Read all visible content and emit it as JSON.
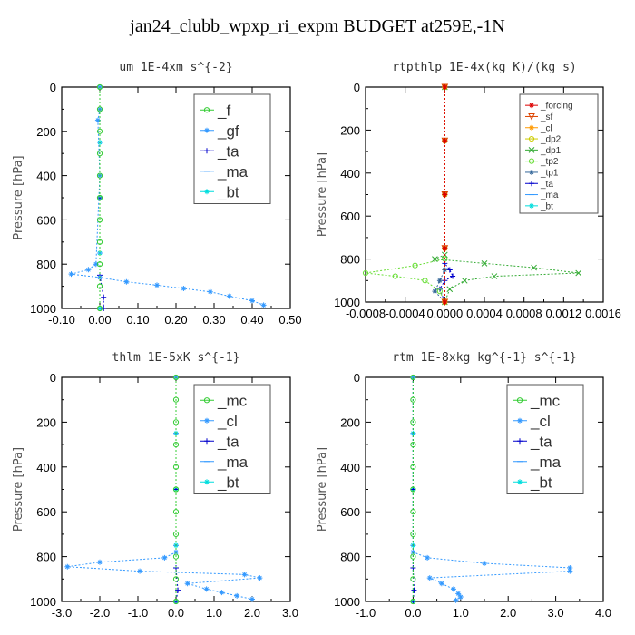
{
  "title": "jan24_clubb_wpxp_ri_expm  BUDGET at259E,-1N",
  "chart_data": [
    {
      "type": "line",
      "title": "um  1E-4xm s^{-2}",
      "ylabel": "Pressure [hPa]",
      "xlim": [
        -0.1,
        0.5
      ],
      "ylim": [
        1000,
        0
      ],
      "xticks": [
        "-0.10",
        "0.00",
        "0.10",
        "0.20",
        "0.30",
        "0.40",
        "0.50"
      ],
      "xtick_values": [
        -0.1,
        0.0,
        0.1,
        0.2,
        0.3,
        0.4,
        0.5
      ],
      "yticks": [
        "0",
        "200",
        "400",
        "600",
        "800",
        "1000"
      ],
      "ytick_values": [
        0,
        200,
        400,
        600,
        800,
        1000
      ],
      "legend_position": "top-right",
      "legend_size": "large",
      "series": [
        {
          "name": "_f",
          "color": "#33cc33",
          "marker": "o",
          "x": [
            0,
            0,
            0,
            0,
            0,
            0,
            0,
            0,
            0,
            0,
            0
          ],
          "y": [
            0,
            100,
            200,
            300,
            400,
            500,
            600,
            700,
            800,
            900,
            1000
          ]
        },
        {
          "name": "_gf",
          "color": "#3399ff",
          "marker": "*",
          "x": [
            0.0,
            0.0,
            -0.005,
            0.0,
            -0.01,
            -0.03,
            -0.075,
            0.0,
            0.07,
            0.15,
            0.22,
            0.29,
            0.34,
            0.4,
            0.43
          ],
          "y": [
            0,
            100,
            150,
            400,
            800,
            825,
            845,
            860,
            880,
            895,
            910,
            925,
            945,
            965,
            985
          ]
        },
        {
          "name": "_ta",
          "color": "#0000cc",
          "marker": "+",
          "x": [
            0,
            0,
            0,
            0.01,
            0.01
          ],
          "y": [
            0,
            500,
            850,
            950,
            1000
          ]
        },
        {
          "name": "_ma",
          "color": "#3399ff",
          "marker": "-",
          "x": [
            0,
            0,
            0,
            0,
            0
          ],
          "y": [
            0,
            250,
            500,
            750,
            1000
          ]
        },
        {
          "name": "_bt",
          "color": "#00dddd",
          "marker": "*",
          "x": [
            0,
            0,
            0,
            0,
            0
          ],
          "y": [
            0,
            250,
            500,
            750,
            1000
          ]
        }
      ]
    },
    {
      "type": "line",
      "title": "rtpthlp  1E-4x(kg K)/(kg s)",
      "ylabel": "Pressure [hPa]",
      "xlim": [
        -0.0008,
        0.0016
      ],
      "ylim": [
        1000,
        0
      ],
      "xticks": [
        "-0.0008",
        "-0.0004",
        "0.0000",
        "0.0004",
        "0.0008",
        "0.0012",
        "0.0016"
      ],
      "xtick_values": [
        -0.0008,
        -0.0004,
        0.0,
        0.0004,
        0.0008,
        0.0012,
        0.0016
      ],
      "yticks": [
        "0",
        "200",
        "400",
        "600",
        "800",
        "1000"
      ],
      "ytick_values": [
        0,
        200,
        400,
        600,
        800,
        1000
      ],
      "legend_position": "top-right",
      "legend_size": "small",
      "series": [
        {
          "name": "_forcing",
          "color": "#dd0000",
          "marker": "*",
          "x": [
            0,
            0,
            0,
            0,
            0
          ],
          "y": [
            0,
            250,
            500,
            750,
            1000
          ]
        },
        {
          "name": "_sf",
          "color": "#dd4400",
          "marker": "v",
          "x": [
            0,
            0,
            0,
            0,
            0
          ],
          "y": [
            0,
            250,
            500,
            750,
            1000
          ]
        },
        {
          "name": "_cl",
          "color": "#ff9900",
          "marker": "*",
          "x": [
            0,
            0,
            0,
            0,
            0
          ],
          "y": [
            0,
            250,
            500,
            750,
            1000
          ]
        },
        {
          "name": "_dp2",
          "color": "#cccc00",
          "marker": "o",
          "x": [
            0,
            0,
            0,
            0,
            0
          ],
          "y": [
            0,
            250,
            500,
            750,
            1000
          ]
        },
        {
          "name": "_dp1",
          "color": "#33aa33",
          "marker": "x",
          "x": [
            0.0,
            0.0,
            -0.0001,
            0.0004,
            0.0009,
            0.00135,
            0.0005,
            0.0002,
            5e-05,
            0.0
          ],
          "y": [
            0,
            780,
            800,
            820,
            840,
            865,
            880,
            900,
            940,
            1000
          ]
        },
        {
          "name": "_tp2",
          "color": "#66dd33",
          "marker": "o",
          "x": [
            0.0,
            0.0,
            -0.0003,
            -0.0008,
            -0.0005,
            -0.0002,
            -5e-05,
            0.0
          ],
          "y": [
            0,
            800,
            830,
            865,
            880,
            900,
            950,
            1000
          ]
        },
        {
          "name": "_tp1",
          "color": "#336699",
          "marker": "*",
          "x": [
            0.0,
            0.0,
            -5e-05,
            -0.0001,
            0.0
          ],
          "y": [
            0,
            850,
            900,
            950,
            1000
          ]
        },
        {
          "name": "_ta",
          "color": "#0000cc",
          "marker": "+",
          "x": [
            0.0,
            0.0,
            5e-05,
            8e-05,
            0.0,
            -5e-05,
            0.0
          ],
          "y": [
            0,
            820,
            850,
            880,
            900,
            940,
            1000
          ]
        },
        {
          "name": "_ma",
          "color": "#3399ff",
          "marker": "-",
          "x": [
            0,
            0,
            0,
            0,
            0
          ],
          "y": [
            0,
            250,
            500,
            750,
            1000
          ]
        },
        {
          "name": "_bt",
          "color": "#00dddd",
          "marker": "*",
          "x": [
            0,
            0,
            0,
            0,
            0
          ],
          "y": [
            0,
            250,
            500,
            750,
            1000
          ]
        }
      ]
    },
    {
      "type": "line",
      "title": "thlm  1E-5xK s^{-1}",
      "ylabel": "Pressure [hPa]",
      "xlim": [
        -3.0,
        3.0
      ],
      "ylim": [
        1000,
        0
      ],
      "xticks": [
        "-3.0",
        "-2.0",
        "-1.0",
        "0.0",
        "1.0",
        "2.0",
        "3.0"
      ],
      "xtick_values": [
        -3.0,
        -2.0,
        -1.0,
        0.0,
        1.0,
        2.0,
        3.0
      ],
      "yticks": [
        "0",
        "200",
        "400",
        "600",
        "800",
        "1000"
      ],
      "ytick_values": [
        0,
        200,
        400,
        600,
        800,
        1000
      ],
      "legend_position": "top-right",
      "legend_size": "large",
      "series": [
        {
          "name": "_mc",
          "color": "#33cc33",
          "marker": "o",
          "x": [
            0,
            0,
            0,
            0,
            0,
            0,
            0,
            0,
            0,
            0,
            0
          ],
          "y": [
            0,
            100,
            200,
            300,
            400,
            500,
            600,
            700,
            800,
            900,
            1000
          ]
        },
        {
          "name": "_cl",
          "color": "#3399ff",
          "marker": "*",
          "x": [
            0.0,
            0.0,
            -0.3,
            -2.0,
            -2.85,
            -0.95,
            1.8,
            2.2,
            0.3,
            0.8,
            1.2,
            1.6,
            2.0
          ],
          "y": [
            0,
            780,
            805,
            825,
            845,
            865,
            880,
            895,
            920,
            945,
            960,
            975,
            990
          ]
        },
        {
          "name": "_ta",
          "color": "#0000cc",
          "marker": "+",
          "x": [
            0,
            0,
            0,
            0.05,
            0
          ],
          "y": [
            0,
            500,
            850,
            950,
            1000
          ]
        },
        {
          "name": "_ma",
          "color": "#3399ff",
          "marker": "-",
          "x": [
            0,
            0,
            0,
            0,
            0
          ],
          "y": [
            0,
            250,
            500,
            750,
            1000
          ]
        },
        {
          "name": "_bt",
          "color": "#00dddd",
          "marker": "*",
          "x": [
            0,
            0,
            0,
            0,
            0
          ],
          "y": [
            0,
            250,
            500,
            750,
            1000
          ]
        }
      ]
    },
    {
      "type": "line",
      "title": "rtm  1E-8xkg kg^{-1} s^{-1}",
      "ylabel": "Pressure [hPa]",
      "xlim": [
        -1.0,
        4.0
      ],
      "ylim": [
        1000,
        0
      ],
      "xticks": [
        "-1.0",
        "0.0",
        "1.0",
        "2.0",
        "3.0",
        "4.0"
      ],
      "xtick_values": [
        -1.0,
        0.0,
        1.0,
        2.0,
        3.0,
        4.0
      ],
      "yticks": [
        "0",
        "200",
        "400",
        "600",
        "800",
        "1000"
      ],
      "ytick_values": [
        0,
        200,
        400,
        600,
        800,
        1000
      ],
      "legend_position": "top-right",
      "legend_size": "large",
      "series": [
        {
          "name": "_mc",
          "color": "#33cc33",
          "marker": "o",
          "x": [
            0,
            0,
            0,
            0,
            0,
            0,
            0,
            0,
            0,
            0,
            0
          ],
          "y": [
            0,
            100,
            200,
            300,
            400,
            500,
            600,
            700,
            800,
            900,
            1000
          ]
        },
        {
          "name": "_cl",
          "color": "#3399ff",
          "marker": "*",
          "x": [
            0.0,
            0.0,
            0.3,
            1.5,
            3.3,
            3.3,
            0.35,
            0.6,
            0.85,
            0.95,
            1.0,
            0.9
          ],
          "y": [
            0,
            780,
            805,
            830,
            850,
            865,
            895,
            920,
            945,
            965,
            980,
            995
          ]
        },
        {
          "name": "_ta",
          "color": "#0000cc",
          "marker": "+",
          "x": [
            0,
            0,
            0,
            0.02,
            0
          ],
          "y": [
            0,
            500,
            850,
            950,
            1000
          ]
        },
        {
          "name": "_ma",
          "color": "#3399ff",
          "marker": "-",
          "x": [
            0,
            0,
            0,
            0,
            0
          ],
          "y": [
            0,
            250,
            500,
            750,
            1000
          ]
        },
        {
          "name": "_bt",
          "color": "#00dddd",
          "marker": "*",
          "x": [
            0,
            0,
            0,
            0,
            0
          ],
          "y": [
            0,
            250,
            500,
            750,
            1000
          ]
        }
      ]
    }
  ]
}
